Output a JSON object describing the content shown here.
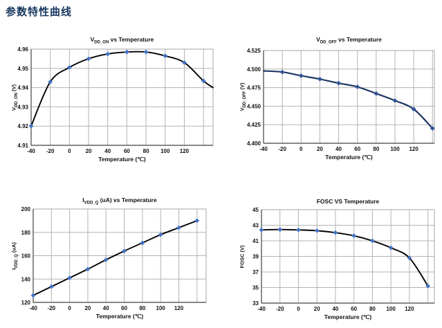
{
  "page": {
    "header": "参数特性曲线",
    "header_color": "#17375E",
    "background": "#ffffff"
  },
  "chart_data": [
    {
      "type": "line",
      "title": "VDD_ON vs Temperature",
      "title_parts": {
        "pre": "V",
        "sub": "DD_ON",
        "post": " vs Temperature"
      },
      "xlabel": "Temperature (℃)",
      "ylabel": "VDD_ON (V)",
      "ylabel_parts": {
        "pre": "V",
        "sub": "DD_ON",
        "post": " (V)"
      },
      "x": [
        -40,
        -20,
        0,
        20,
        40,
        60,
        80,
        100,
        120,
        140
      ],
      "values": [
        4.92,
        4.943,
        4.9505,
        4.955,
        4.9575,
        4.9585,
        4.9585,
        4.9565,
        4.953,
        4.9435
      ],
      "curve_tail": {
        "x": 150,
        "y": 4.94
      },
      "first_point_marker": true,
      "xlim": [
        -40,
        150
      ],
      "x_gridlines": [
        -20,
        0,
        20,
        40,
        60,
        80,
        100,
        120,
        140
      ],
      "x_tick_labels": [
        -40,
        -20,
        0,
        20,
        40,
        60,
        80,
        100,
        120
      ],
      "ylim": [
        4.91,
        4.96
      ],
      "yticks": [
        4.91,
        4.92,
        4.93,
        4.94,
        4.95,
        4.96
      ],
      "ytick_decimals": 2,
      "grid": true,
      "legend": "none",
      "line_color": "#000000",
      "marker_color": "#4472C4"
    },
    {
      "type": "line",
      "title": "VDD_OFF vs Temperature",
      "title_parts": {
        "pre": "V",
        "sub": "DD_OFF",
        "post": " vs Temperature"
      },
      "xlabel": "Temperature (℃)",
      "ylabel": "VDD_OFF (V)",
      "ylabel_parts": {
        "pre": "V",
        "sub": "DD_OFF",
        "post": " (V)"
      },
      "x": [
        -40,
        -20,
        0,
        20,
        40,
        60,
        80,
        100,
        120,
        140
      ],
      "values": [
        4.4975,
        4.496,
        4.491,
        4.4865,
        4.481,
        4.476,
        4.467,
        4.4575,
        4.446,
        4.42
      ],
      "curve_tail": null,
      "first_point_marker": false,
      "xlim": [
        -40,
        142
      ],
      "x_gridlines": [
        -20,
        0,
        20,
        40,
        60,
        80,
        100,
        120,
        140
      ],
      "x_tick_labels": [
        -40,
        -20,
        0,
        20,
        40,
        60,
        80,
        100,
        120
      ],
      "ylim": [
        4.4,
        4.525
      ],
      "yticks": [
        4.4,
        4.425,
        4.45,
        4.475,
        4.5,
        4.525
      ],
      "ytick_decimals": 3,
      "grid": true,
      "legend": "none",
      "line_color": "#1F3864",
      "marker_color": "#2F5597"
    },
    {
      "type": "line",
      "title": "IVDD_Q (uA) vs Temperature",
      "title_parts": {
        "pre": "I",
        "sub": "VDD_Q",
        "post": " (uA) vs Temperature"
      },
      "xlabel": "Temperature (℃)",
      "ylabel": "IVDD_Q (uA)",
      "ylabel_parts": {
        "pre": "I",
        "sub": "VDD_Q",
        "post": " (uA)"
      },
      "x": [
        -40,
        -20,
        0,
        20,
        40,
        60,
        80,
        100,
        120,
        140
      ],
      "values": [
        126,
        133.5,
        141,
        148.5,
        156.5,
        164,
        171,
        178,
        184,
        190
      ],
      "curve_tail": null,
      "first_point_marker": true,
      "xlim": [
        -40,
        150
      ],
      "x_gridlines": [
        -20,
        0,
        20,
        40,
        60,
        80,
        100,
        120,
        140
      ],
      "x_tick_labels": [
        -40,
        -20,
        0,
        20,
        40,
        60,
        80,
        100,
        120
      ],
      "ylim": [
        120,
        200
      ],
      "yticks": [
        120,
        140,
        160,
        180,
        200
      ],
      "ytick_decimals": 0,
      "grid": true,
      "legend": "none",
      "line_color": "#000000",
      "marker_color": "#4472C4"
    },
    {
      "type": "line",
      "title": "FOSC VS Temperature",
      "title_parts": {
        "pre": "FOSC VS Temperature",
        "sub": "",
        "post": ""
      },
      "xlabel": "Temperature (℃)",
      "ylabel": "FOSC (V)",
      "ylabel_parts": {
        "pre": "FOSC (V)",
        "sub": "",
        "post": ""
      },
      "x": [
        -40,
        -20,
        0,
        20,
        40,
        60,
        80,
        100,
        120,
        140
      ],
      "values": [
        42.4,
        42.45,
        42.4,
        42.3,
        42.05,
        41.65,
        41.0,
        40.1,
        38.8,
        35.2
      ],
      "curve_tail": null,
      "first_point_marker": true,
      "xlim": [
        -40,
        147
      ],
      "x_gridlines": [
        -20,
        0,
        20,
        40,
        60,
        80,
        100,
        120,
        140
      ],
      "x_tick_labels": [
        -40,
        -20,
        0,
        20,
        40,
        60,
        80,
        100,
        120
      ],
      "ylim": [
        33,
        45
      ],
      "yticks": [
        33,
        35,
        37,
        39,
        41,
        43,
        45
      ],
      "ytick_decimals": 0,
      "grid": true,
      "legend": "none",
      "line_color": "#000000",
      "marker_color": "#4472C4"
    }
  ]
}
